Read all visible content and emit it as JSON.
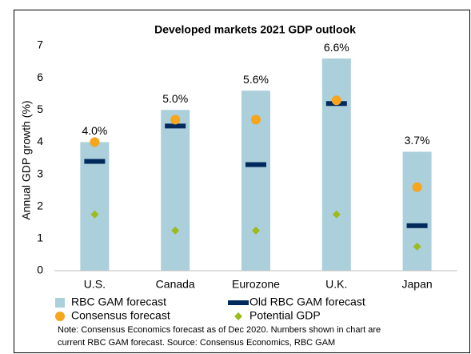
{
  "chart_data": {
    "type": "bar",
    "title": "Developed markets 2021 GDP outlook",
    "y_label": "Annual GDP growth (%)",
    "categories": [
      "U.S.",
      "Canada",
      "Eurozone",
      "U.K.",
      "Japan"
    ],
    "series": [
      {
        "name": "RBC GAM forecast",
        "marker": "bar",
        "color": "#abcfdb",
        "values": [
          4.0,
          5.0,
          5.6,
          6.6,
          3.7
        ],
        "value_labels": [
          "4.0%",
          "5.0%",
          "5.6%",
          "6.6%",
          "3.7%"
        ]
      },
      {
        "name": "Old RBC GAM forecast",
        "marker": "dash",
        "color": "#002a5c",
        "values": [
          3.4,
          4.5,
          3.3,
          5.2,
          1.4
        ]
      },
      {
        "name": "Consensus forecast",
        "marker": "circle",
        "color": "#f7a51c",
        "values": [
          4.0,
          4.7,
          4.7,
          5.3,
          2.6
        ]
      },
      {
        "name": "Potential GDP",
        "marker": "diamond",
        "color": "#9cbb1c",
        "values": [
          1.75,
          1.25,
          1.25,
          1.75,
          0.75
        ]
      }
    ],
    "ylim": [
      0,
      7
    ],
    "yticks": [
      0,
      1,
      2,
      3,
      4,
      5,
      6,
      7
    ],
    "note": [
      "Note: Consensus Economics forecast as of Dec 2020. Numbers shown in chart are",
      "current RBC GAM forecast. Source: Consensus Economics, RBC GAM"
    ]
  }
}
